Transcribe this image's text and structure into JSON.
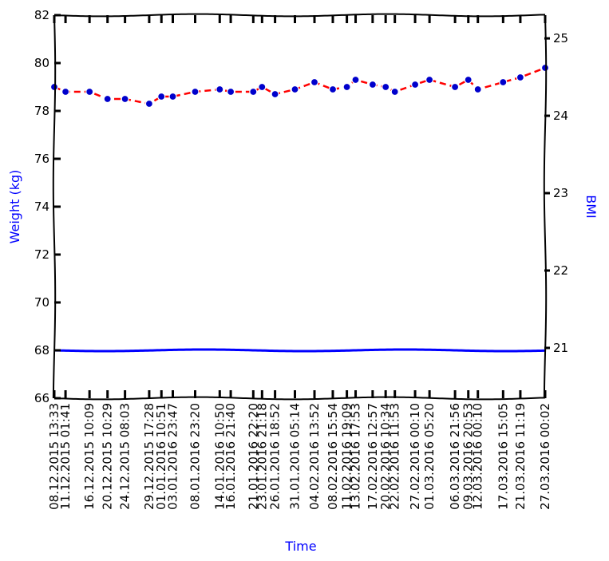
{
  "chart_data": {
    "type": "line",
    "xlabel": "Time",
    "ylabel": "Weight (kg)",
    "y2label": "BMI",
    "ylim": [
      66,
      82
    ],
    "yticks": [
      66,
      68,
      70,
      72,
      74,
      76,
      78,
      80,
      82
    ],
    "y2lim": [
      20.35,
      25.3
    ],
    "y2ticks": [
      21,
      22,
      23,
      24,
      25
    ],
    "y2_tick_labels": [
      "21",
      "22",
      "23",
      "24",
      "25"
    ],
    "x_tick_labels": [
      "08.12.2015 13:33",
      "11.12.2015 01:41",
      "16.12.2015 10:09",
      "20.12.2015 10:29",
      "24.12.2015 08:03",
      "29.12.2015 17:28",
      "01.01.2016 10:51",
      "03.01.2016 23:47",
      "08.01.2016 23:20",
      "14.01.2016 10:50",
      "16.01.2016 21:40",
      "21.01.2016 22:20",
      "23.01.2016 21:18",
      "26.01.2016 18:52",
      "31.01.2016 05:14",
      "04.02.2016 13:52",
      "08.02.2016 15:54",
      "11.02.2016 19:09",
      "13.02.2016 17:53",
      "17.02.2016 12:57",
      "20.02.2016 10:34",
      "22.02.2016 11:53",
      "27.02.2016 00:10",
      "01.03.2016 05:20",
      "06.03.2016 21:56",
      "09.03.2016 20:53",
      "12.03.2016 00:10",
      "17.03.2016 15:05",
      "21.03.2016 11:19",
      "27.03.2016 00:02"
    ],
    "series": [
      {
        "name": "",
        "axis": "left",
        "line_color": "#ff0000",
        "marker_color": "#0000cc",
        "line_style": "dashed",
        "x": [
          "08.12.2015 13:33",
          "11.12.2015 01:41",
          "16.12.2015 10:09",
          "20.12.2015 10:29",
          "24.12.2015 08:03",
          "29.12.2015 17:28",
          "01.01.2016 10:51",
          "03.01.2016 23:47",
          "08.01.2016 23:20",
          "14.01.2016 10:50",
          "16.01.2016 21:40",
          "21.01.2016 22:20",
          "23.01.2016 21:18",
          "26.01.2016 18:52",
          "31.01.2016 05:14",
          "04.02.2016 13:52",
          "08.02.2016 15:54",
          "11.02.2016 19:09",
          "13.02.2016 17:53",
          "17.02.2016 12:57",
          "20.02.2016 10:34",
          "22.02.2016 11:53",
          "27.02.2016 00:10",
          "01.03.2016 05:20",
          "06.03.2016 21:56",
          "09.03.2016 20:53",
          "12.03.2016 00:10",
          "17.03.2016 15:05",
          "21.03.2016 11:19",
          "27.03.2016 00:02"
        ],
        "values": [
          79.0,
          78.8,
          78.8,
          78.5,
          78.5,
          78.3,
          78.6,
          78.6,
          78.8,
          78.9,
          78.8,
          78.8,
          79.0,
          78.7,
          78.9,
          79.2,
          78.9,
          79.0,
          79.3,
          79.1,
          79.0,
          78.8,
          79.1,
          79.3,
          79.0,
          79.3,
          78.9,
          79.2,
          79.4,
          79.8
        ]
      },
      {
        "name": "",
        "axis": "left",
        "line_color": "#0000ff",
        "line_style": "solid",
        "x": [
          "08.12.2015 13:33",
          "27.03.2016 00:02"
        ],
        "values": [
          68.0,
          68.0
        ]
      }
    ],
    "grid": false,
    "legend": "none"
  },
  "colors": {
    "axis": "#000000",
    "label": "#0000ff"
  }
}
